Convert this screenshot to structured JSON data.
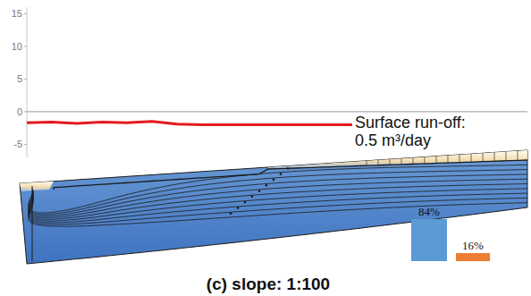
{
  "caption": "(c) slope: 1:100",
  "chart_data": [
    {
      "type": "line",
      "x": [
        0,
        5,
        10,
        15,
        20,
        25,
        30,
        35,
        40,
        45,
        50,
        55,
        60,
        65,
        70,
        75,
        80,
        85,
        90,
        95,
        100
      ],
      "xlim": [
        0,
        100
      ],
      "ylim": [
        -7,
        16
      ],
      "yticks": [
        15,
        10,
        5,
        0,
        -5
      ],
      "tick_labels": "y",
      "annotations": [
        "Surface run-off: 0.5 m³/day"
      ],
      "series": [
        {
          "color": "#e31a1c",
          "line_style": "solid",
          "values": [
            -1.7,
            -1.6,
            -1.8,
            -1.6,
            -1.7,
            -1.5,
            -1.9,
            -2.0,
            -2.0,
            -2.0,
            -2.0,
            -2.0,
            -2.0,
            -2.0,
            null,
            null,
            null,
            null,
            null,
            null,
            null
          ]
        },
        {
          "color": "#999999",
          "line_style": "solid",
          "values": [
            0,
            0,
            0,
            0,
            0,
            0,
            0,
            0,
            0,
            0,
            0,
            0,
            0,
            0,
            0,
            0,
            0,
            0,
            0,
            0,
            0
          ]
        }
      ]
    },
    {
      "type": "bar",
      "categories": [
        null,
        null
      ],
      "values": [
        84,
        16
      ],
      "value_labels": [
        "84%",
        "16%"
      ],
      "colors": [
        "#5b9bd5",
        "#ed7d31"
      ],
      "ylim": [
        0,
        100
      ],
      "data_labels": true,
      "tick_labels": false
    }
  ]
}
